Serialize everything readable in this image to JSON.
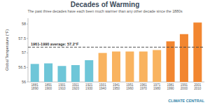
{
  "chart_data": {
    "type": "bar",
    "title": "Decades of Warming",
    "subtitle": "The past three decades have each been much warmer than any other decade since the 1880s",
    "y_label": "Global Temperature (°F)",
    "categories": [
      "1881\n1890",
      "1891\n1900",
      "1901\n1910",
      "1911\n1920",
      "1921\n1930",
      "1931\n1940",
      "1941\n1950",
      "1951\n1960",
      "1961\n1970",
      "1971\n1980",
      "1981\n1990",
      "1991\n2000",
      "2001\n2010"
    ],
    "values": [
      56.62,
      56.64,
      56.55,
      56.58,
      56.75,
      57.0,
      57.05,
      57.05,
      57.05,
      57.1,
      57.4,
      57.65,
      58.05
    ],
    "colors": [
      "#6ec6d8",
      "#6ec6d8",
      "#6ec6d8",
      "#6ec6d8",
      "#6ec6d8",
      "#f9b35f",
      "#f9b35f",
      "#f9b35f",
      "#f9b35f",
      "#f9b35f",
      "#f28630",
      "#f28630",
      "#f28630"
    ],
    "ylim": [
      56,
      58.2
    ],
    "yticks": [
      56,
      56.5,
      57,
      57.5,
      58
    ],
    "grid": false,
    "annotations": [
      {
        "text": "1961-1990 average: 57.2°F",
        "value": 57.2
      }
    ],
    "credit": "CLIMATE CENTRAL"
  }
}
